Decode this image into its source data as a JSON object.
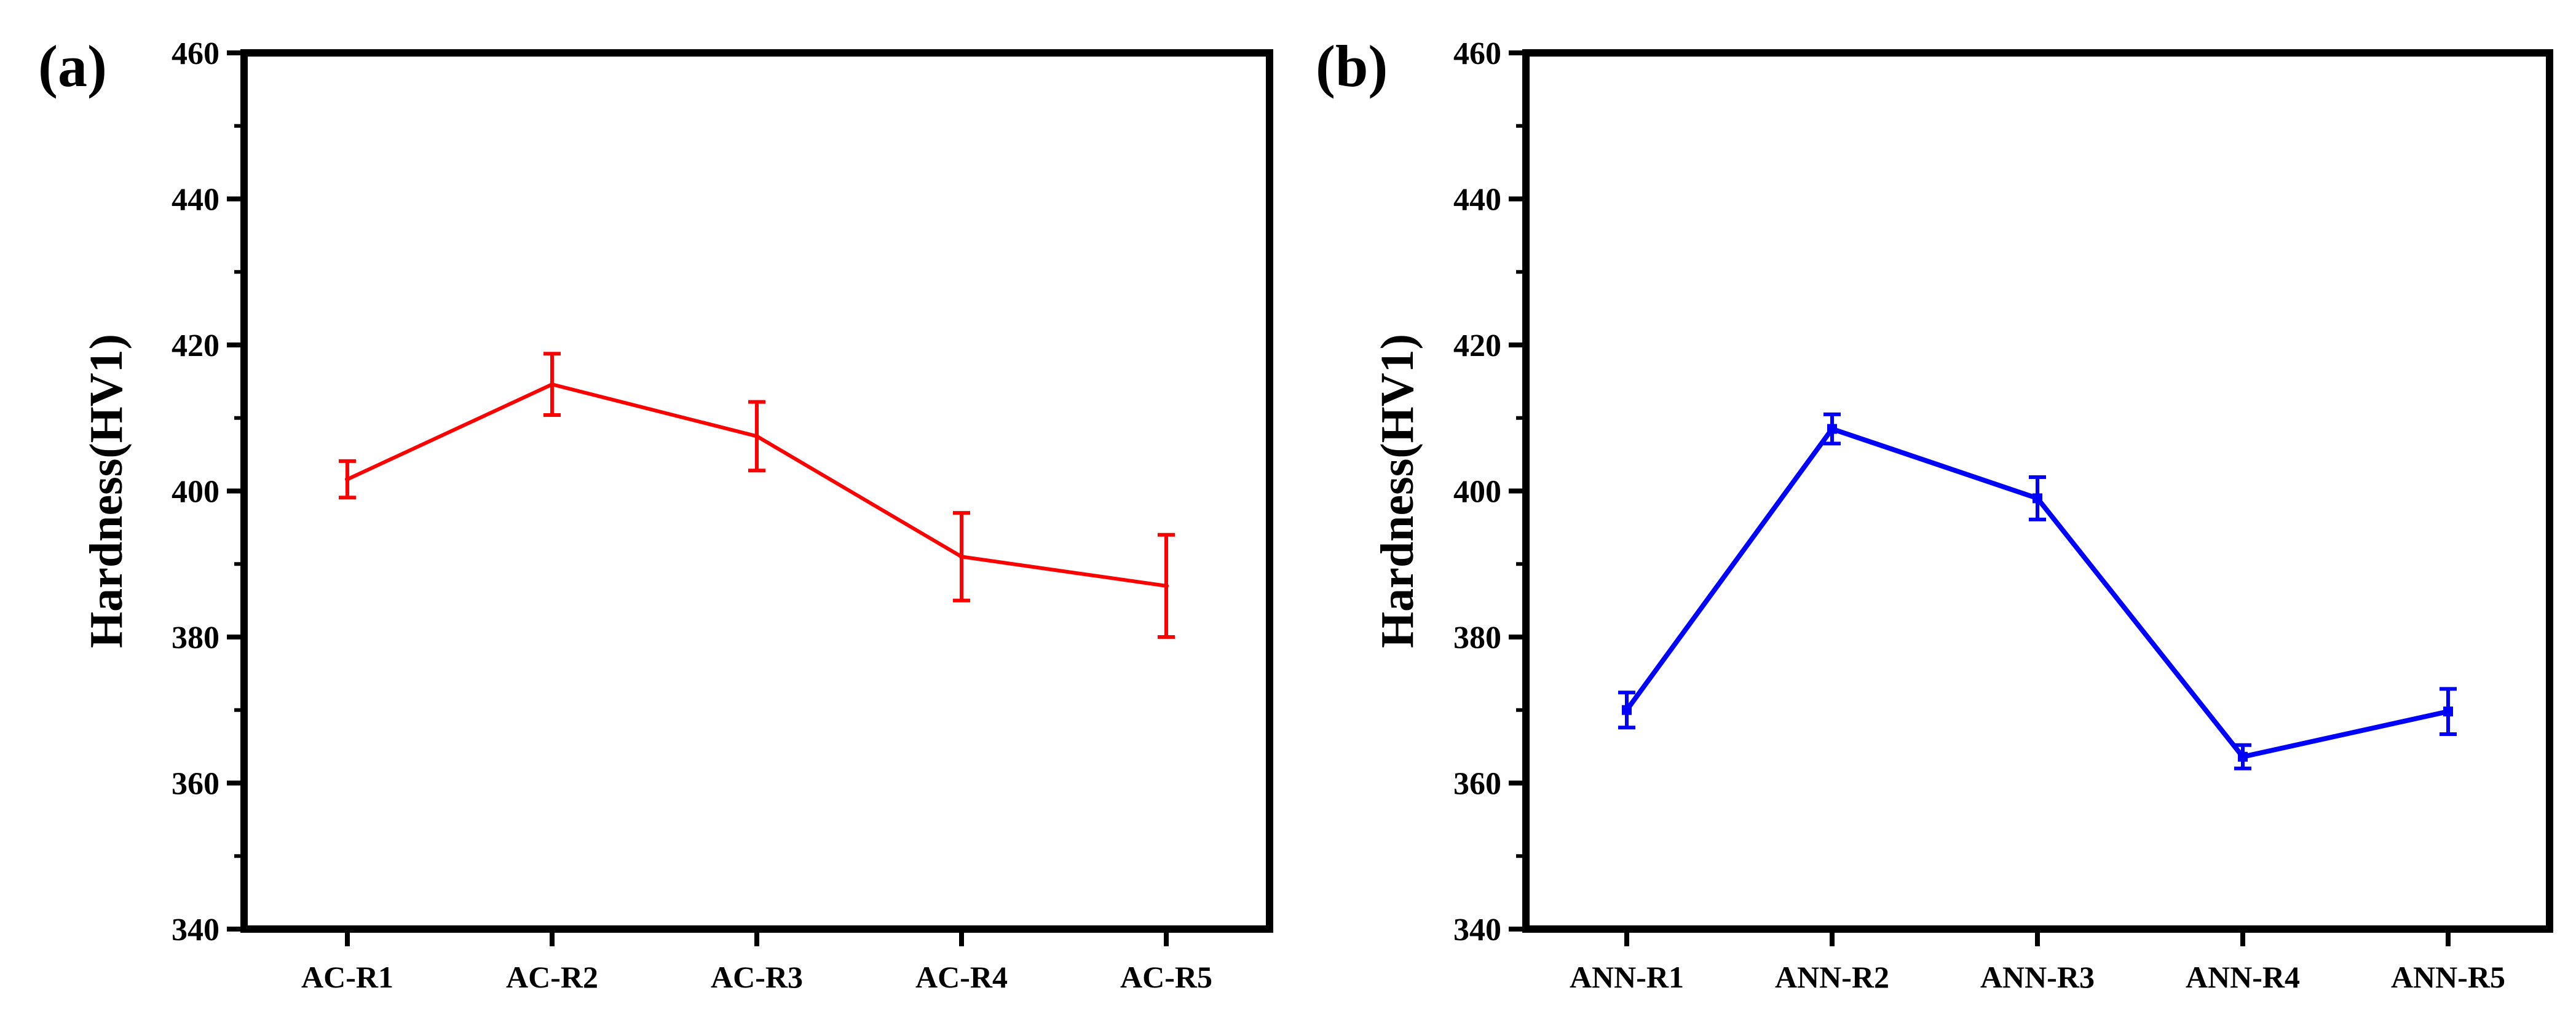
{
  "chart_data": [
    {
      "type": "line",
      "panel_label": "(a)",
      "title": "",
      "xlabel": "",
      "ylabel": "Hardness(HV1)",
      "ylim": [
        340,
        460
      ],
      "yticks": [
        340,
        360,
        380,
        400,
        420,
        440,
        460
      ],
      "grid": false,
      "color": "#ff0000",
      "markers": false,
      "categories": [
        "AC-R1",
        "AC-R2",
        "AC-R3",
        "AC-R4",
        "AC-R5"
      ],
      "values": [
        401.6,
        414.6,
        407.5,
        391.0,
        387.0
      ],
      "errors": [
        2.5,
        4.2,
        4.7,
        6.0,
        7.0
      ]
    },
    {
      "type": "line",
      "panel_label": "(b)",
      "title": "",
      "xlabel": "",
      "ylabel": "Hardness(HV1)",
      "ylim": [
        340,
        460
      ],
      "yticks": [
        340,
        360,
        380,
        400,
        420,
        440,
        460
      ],
      "grid": false,
      "color": "#0000ff",
      "markers": true,
      "categories": [
        "ANN-R1",
        "ANN-R2",
        "ANN-R3",
        "ANN-R4",
        "ANN-R5"
      ],
      "values": [
        370.0,
        408.5,
        399.0,
        363.6,
        369.8
      ],
      "errors": [
        2.4,
        2.0,
        2.9,
        1.6,
        3.1
      ]
    }
  ]
}
